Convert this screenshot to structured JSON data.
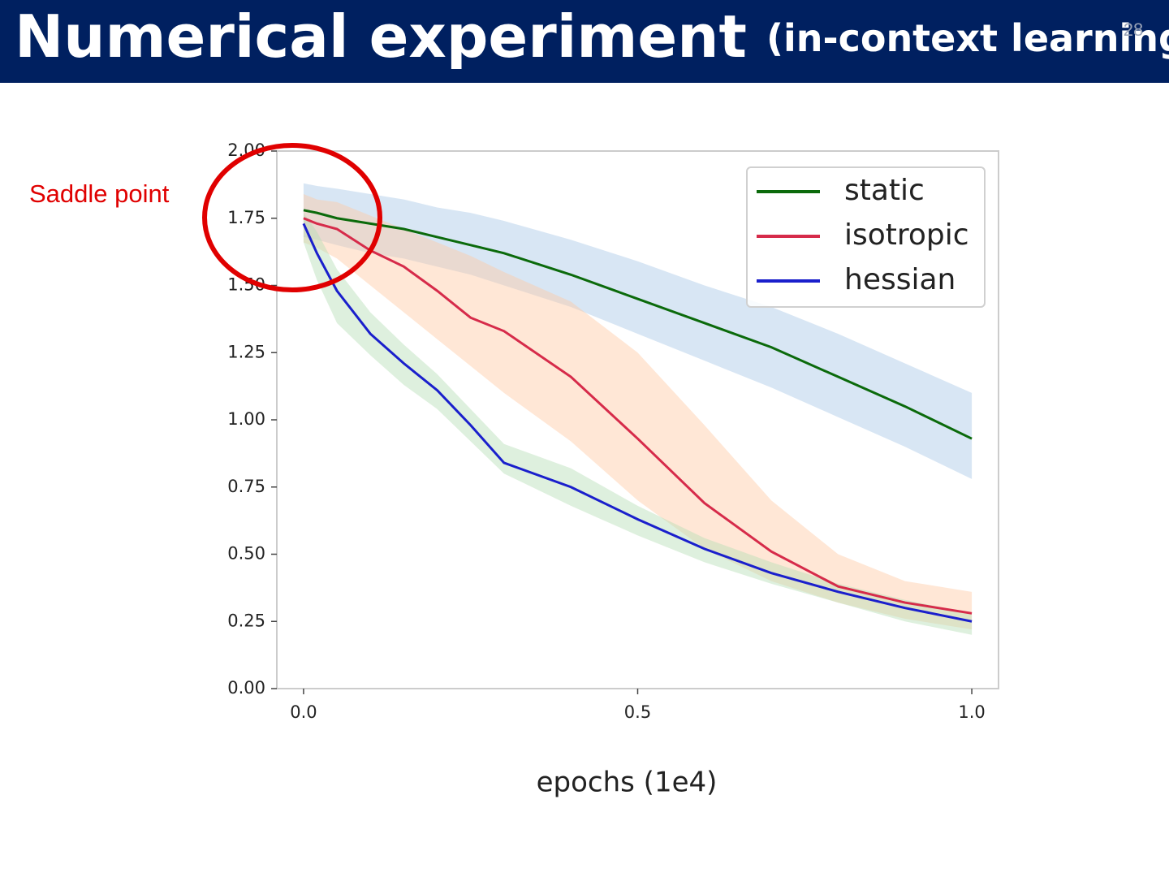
{
  "header": {
    "title": "Numerical experiment",
    "subtitle": "(in-context learning)",
    "page_number": "28"
  },
  "annotation": "Saddle point",
  "chart_data": {
    "type": "line",
    "xlabel": "epochs (1e4)",
    "x": [
      0,
      0.02,
      0.05,
      0.1,
      0.15,
      0.2,
      0.25,
      0.3,
      0.4,
      0.5,
      0.6,
      0.7,
      0.8,
      0.9,
      1.0
    ],
    "series": [
      {
        "name": "static",
        "color": "#0b6a0b",
        "band_color": "#a9c8e6",
        "values": [
          1.78,
          1.77,
          1.75,
          1.73,
          1.71,
          1.68,
          1.65,
          1.62,
          1.54,
          1.45,
          1.36,
          1.27,
          1.16,
          1.05,
          0.93
        ],
        "upper": [
          1.88,
          1.87,
          1.86,
          1.84,
          1.82,
          1.79,
          1.77,
          1.74,
          1.67,
          1.59,
          1.5,
          1.42,
          1.32,
          1.21,
          1.1
        ],
        "lower": [
          1.68,
          1.67,
          1.65,
          1.62,
          1.6,
          1.57,
          1.54,
          1.5,
          1.42,
          1.32,
          1.22,
          1.12,
          1.01,
          0.9,
          0.78
        ]
      },
      {
        "name": "isotropic",
        "color": "#d62b4a",
        "band_color": "#ffc9a3",
        "values": [
          1.75,
          1.73,
          1.71,
          1.63,
          1.57,
          1.48,
          1.38,
          1.33,
          1.16,
          0.93,
          0.69,
          0.51,
          0.38,
          0.32,
          0.28
        ],
        "upper": [
          1.84,
          1.82,
          1.81,
          1.76,
          1.71,
          1.66,
          1.61,
          1.55,
          1.44,
          1.25,
          0.98,
          0.7,
          0.5,
          0.4,
          0.36
        ],
        "lower": [
          1.66,
          1.64,
          1.6,
          1.5,
          1.4,
          1.3,
          1.2,
          1.1,
          0.92,
          0.7,
          0.52,
          0.4,
          0.32,
          0.26,
          0.22
        ]
      },
      {
        "name": "hessian",
        "color": "#1a1fcc",
        "band_color": "#b5deb5",
        "values": [
          1.73,
          1.62,
          1.48,
          1.32,
          1.21,
          1.11,
          0.98,
          0.84,
          0.75,
          0.63,
          0.52,
          0.43,
          0.36,
          0.3,
          0.25
        ],
        "upper": [
          1.77,
          1.7,
          1.56,
          1.4,
          1.28,
          1.17,
          1.04,
          0.91,
          0.82,
          0.68,
          0.56,
          0.47,
          0.39,
          0.33,
          0.28
        ],
        "lower": [
          1.66,
          1.52,
          1.36,
          1.24,
          1.13,
          1.04,
          0.92,
          0.8,
          0.68,
          0.57,
          0.47,
          0.39,
          0.32,
          0.25,
          0.2
        ]
      }
    ],
    "xlim": [
      -0.04,
      1.04
    ],
    "ylim": [
      0,
      2
    ],
    "xticks": [
      {
        "value": 0,
        "label": "0.0"
      },
      {
        "value": 0.5,
        "label": "0.5"
      },
      {
        "value": 1,
        "label": "1.0"
      }
    ],
    "yticks": [
      {
        "value": 0,
        "label": "0.00"
      },
      {
        "value": 0.25,
        "label": "0.25"
      },
      {
        "value": 0.5,
        "label": "0.50"
      },
      {
        "value": 0.75,
        "label": "0.75"
      },
      {
        "value": 1,
        "label": "1.00"
      },
      {
        "value": 1.25,
        "label": "1.25"
      },
      {
        "value": 1.5,
        "label": "1.50"
      },
      {
        "value": 1.75,
        "label": "1.75"
      },
      {
        "value": 2,
        "label": "2.00"
      }
    ],
    "grid": false,
    "legend": "upper right"
  }
}
